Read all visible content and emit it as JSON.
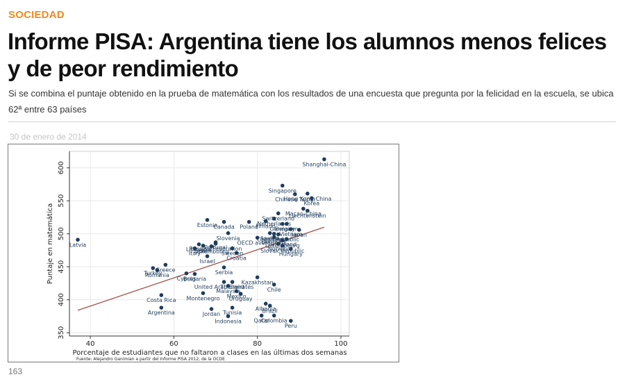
{
  "article": {
    "section": "SOCIEDAD",
    "headline": "Informe PISA: Argentina tiene los alumnos menos felices y de peor rendimiento",
    "subtitle": "Si se combina el puntaje obtenido en la prueba de matemática con los resultados de una encuesta que pregunta por la felicidad en la escuela, se ubica 62ª entre 63 países",
    "date": "30 de enero de 2014",
    "counter": "163"
  },
  "colors": {
    "accent": "#f08a1c",
    "point": "#1f3d5c",
    "fit_line": "#a0524a"
  },
  "chart_data": {
    "type": "scatter",
    "xlabel": "Porcentaje de estudiantes que no faltaron a clases en las últimas dos semanas",
    "ylabel": "Puntaje en matemática",
    "source": "Fuente: Alejandro Ganimian a partir del Informe PISA 2012, de la OCDE",
    "xlim": [
      35,
      102
    ],
    "ylim": [
      345,
      625
    ],
    "x_ticks": [
      40,
      60,
      80,
      100
    ],
    "y_ticks": [
      350,
      400,
      450,
      500,
      550,
      600
    ],
    "grid": true,
    "fit_line": [
      [
        37,
        384
      ],
      [
        96,
        510
      ]
    ],
    "points": [
      {
        "x": 37,
        "y": 491,
        "label": "Latvia"
      },
      {
        "x": 57,
        "y": 388,
        "label": "Argentina"
      },
      {
        "x": 57,
        "y": 407,
        "label": "Costa Rica"
      },
      {
        "x": 56,
        "y": 445,
        "label": "Romania"
      },
      {
        "x": 55,
        "y": 448,
        "label": "Turkey"
      },
      {
        "x": 58,
        "y": 453,
        "label": "Greece"
      },
      {
        "x": 63,
        "y": 440,
        "label": "Cyprus"
      },
      {
        "x": 65,
        "y": 439,
        "label": "Bulgaria"
      },
      {
        "x": 67,
        "y": 410,
        "label": "Montenegro"
      },
      {
        "x": 69,
        "y": 386,
        "label": "Jordan"
      },
      {
        "x": 73,
        "y": 375,
        "label": "Indonesia"
      },
      {
        "x": 74,
        "y": 388,
        "label": "Tunisia"
      },
      {
        "x": 68,
        "y": 466,
        "label": "Israel"
      },
      {
        "x": 65,
        "y": 478,
        "label": "Italy"
      },
      {
        "x": 67,
        "y": 482,
        "label": "Spain"
      },
      {
        "x": 66,
        "y": 484,
        "label": "Lithuania"
      },
      {
        "x": 70,
        "y": 485,
        "label": "Russian Federation"
      },
      {
        "x": 70,
        "y": 487,
        "label": "Portugal"
      },
      {
        "x": 69,
        "y": 481,
        "label": "Luxembourg"
      },
      {
        "x": 72,
        "y": 518,
        "label": "Canada"
      },
      {
        "x": 68,
        "y": 521,
        "label": "Estonia"
      },
      {
        "x": 73,
        "y": 501,
        "label": "Slovenia"
      },
      {
        "x": 74,
        "y": 478,
        "label": "Sweden"
      },
      {
        "x": 75,
        "y": 471,
        "label": "Croatia"
      },
      {
        "x": 72,
        "y": 449,
        "label": "Serbia"
      },
      {
        "x": 72,
        "y": 427,
        "label": "United Arab Emirates"
      },
      {
        "x": 73,
        "y": 421,
        "label": "Malaysia"
      },
      {
        "x": 74,
        "y": 427,
        "label": "Thailand"
      },
      {
        "x": 75,
        "y": 413,
        "label": "Mexico"
      },
      {
        "x": 76,
        "y": 409,
        "label": "Uruguay"
      },
      {
        "x": 78,
        "y": 518,
        "label": "Poland"
      },
      {
        "x": 80,
        "y": 494,
        "label": "OECD average"
      },
      {
        "x": 82,
        "y": 519,
        "label": "Finland"
      },
      {
        "x": 84,
        "y": 523,
        "label": "Netherlands"
      },
      {
        "x": 85,
        "y": 531,
        "label": "Switzerland"
      },
      {
        "x": 86,
        "y": 515,
        "label": "Germany"
      },
      {
        "x": 87,
        "y": 515,
        "label": "Belgium"
      },
      {
        "x": 88,
        "y": 507,
        "label": "Vietnam"
      },
      {
        "x": 90,
        "y": 506,
        "label": "Japan"
      },
      {
        "x": 83,
        "y": 501,
        "label": "Austria"
      },
      {
        "x": 84,
        "y": 500,
        "label": "Ireland"
      },
      {
        "x": 85,
        "y": 499,
        "label": "Czech Republic"
      },
      {
        "x": 86,
        "y": 490,
        "label": "Luxembourg"
      },
      {
        "x": 84,
        "y": 495,
        "label": "Denmark"
      },
      {
        "x": 87,
        "y": 492,
        "label": "Iceland"
      },
      {
        "x": 85,
        "y": 485,
        "label": "Norway"
      },
      {
        "x": 86,
        "y": 482,
        "label": "Slovak Republic"
      },
      {
        "x": 88,
        "y": 477,
        "label": "Hungary"
      },
      {
        "x": 80,
        "y": 434,
        "label": "Kazakhstan"
      },
      {
        "x": 84,
        "y": 423,
        "label": "Chile"
      },
      {
        "x": 82,
        "y": 394,
        "label": "Albania"
      },
      {
        "x": 83,
        "y": 391,
        "label": "Brazil"
      },
      {
        "x": 81,
        "y": 376,
        "label": "Qatar"
      },
      {
        "x": 84,
        "y": 376,
        "label": "Colombia"
      },
      {
        "x": 88,
        "y": 368,
        "label": "Peru"
      },
      {
        "x": 86,
        "y": 573,
        "label": "Singapore"
      },
      {
        "x": 89,
        "y": 560,
        "label": "Chinese Taipei"
      },
      {
        "x": 92,
        "y": 561,
        "label": "Hong Kong-China"
      },
      {
        "x": 93,
        "y": 554,
        "label": "Korea"
      },
      {
        "x": 91,
        "y": 538,
        "label": "Macao-China"
      },
      {
        "x": 92,
        "y": 535,
        "label": "Liechtenstein"
      },
      {
        "x": 96,
        "y": 613,
        "label": "Shanghai-China"
      }
    ]
  }
}
